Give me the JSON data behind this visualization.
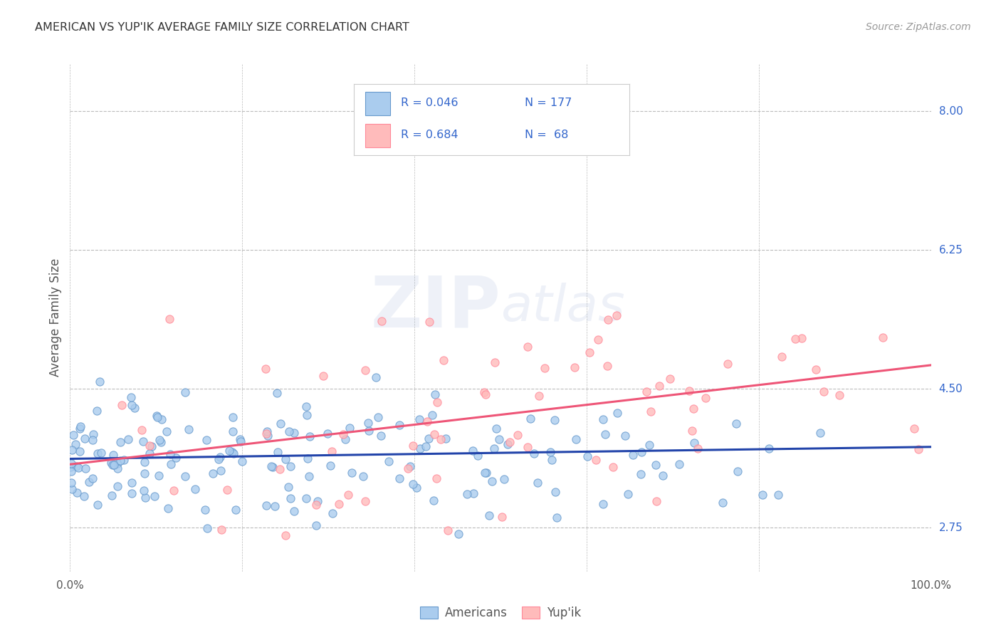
{
  "title": "AMERICAN VS YUP'IK AVERAGE FAMILY SIZE CORRELATION CHART",
  "source": "Source: ZipAtlas.com",
  "ylabel": "Average Family Size",
  "yticks": [
    2.75,
    4.5,
    6.25,
    8.0
  ],
  "xlim": [
    0.0,
    1.0
  ],
  "ylim": [
    2.2,
    8.6
  ],
  "watermark_zip": "ZIP",
  "watermark_atlas": "atlas",
  "blue_face": "#AACCEE",
  "blue_edge": "#6699CC",
  "pink_face": "#FFBBBB",
  "pink_edge": "#FF8899",
  "blue_line_color": "#2244AA",
  "pink_line_color": "#EE5577",
  "grid_color": "#BBBBBB",
  "title_color": "#333333",
  "source_color": "#999999",
  "axis_label_color": "#555555",
  "tick_color": "#3366CC",
  "legend_value_color": "#3366CC",
  "n_americans": 177,
  "n_yupik": 68,
  "blue_intercept": 3.62,
  "blue_slope": 0.15,
  "pink_intercept": 3.55,
  "pink_slope": 1.25,
  "americans_seed": 42,
  "yupik_seed": 123,
  "bottom_legend_labels": [
    "Americans",
    "Yup'ik"
  ]
}
